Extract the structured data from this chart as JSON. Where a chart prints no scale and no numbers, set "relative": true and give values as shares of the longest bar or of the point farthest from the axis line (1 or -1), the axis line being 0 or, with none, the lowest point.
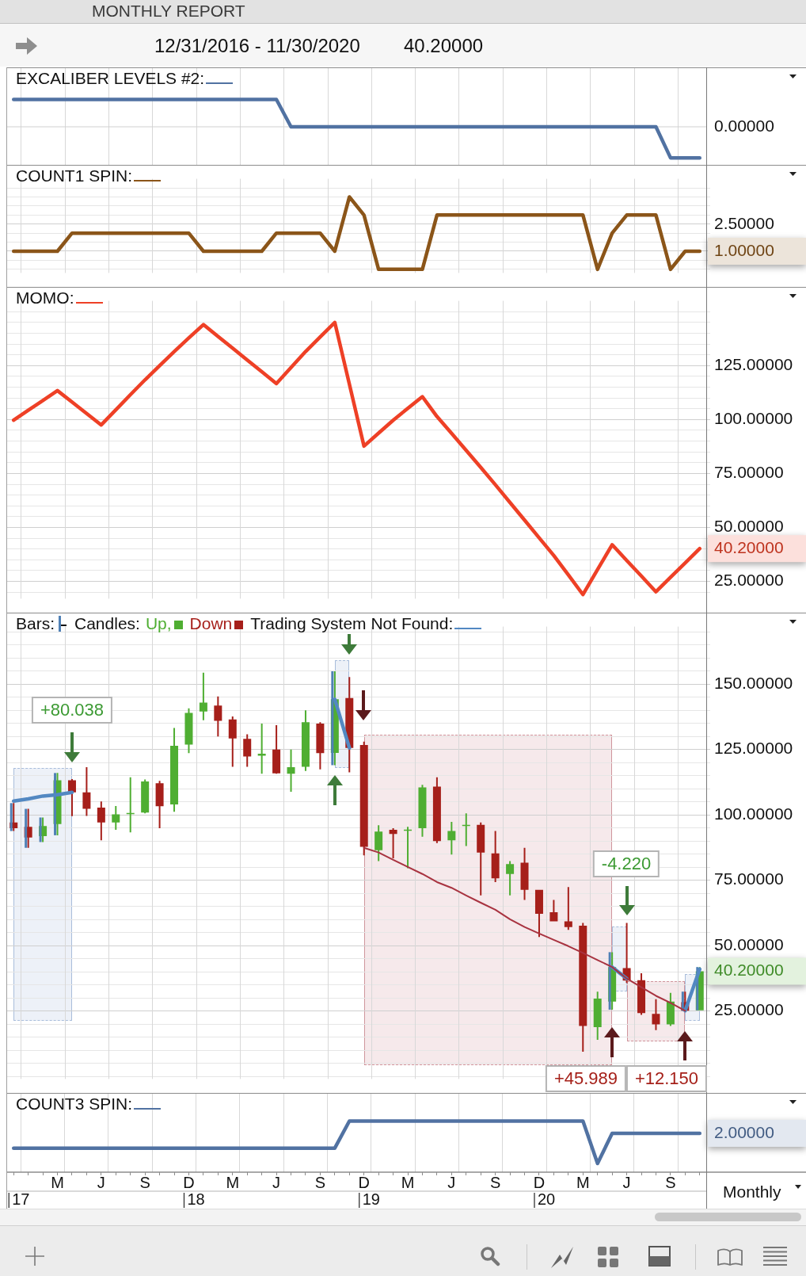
{
  "chart_data": [
    {
      "type": "line",
      "title": "MONTHLY REPORT",
      "subtitle": "12/31/2016 - 11/30/2020",
      "annotations": [
        "40.20000"
      ],
      "relative": true,
      "legend": "top left",
      "grid": "x",
      "tick_labels": false,
      "categories": [
        null,
        null,
        null,
        null,
        null,
        null,
        null,
        null,
        null,
        null,
        null,
        null,
        null,
        null,
        null,
        null,
        null,
        null,
        null,
        null,
        null,
        null,
        null,
        null,
        null,
        null,
        null,
        null,
        null,
        null,
        null,
        null,
        null,
        null,
        null,
        null,
        null,
        null,
        null,
        null,
        null,
        null,
        null,
        null,
        null,
        null,
        null,
        null
      ],
      "ref_lines": [
        {
          "axis": "y",
          "value": 0,
          "label": "0.00000"
        }
      ],
      "series": [
        {
          "name": "EXCALIBER LEVELS #2:",
          "color": "#5172a2",
          "values": [
            0.88,
            0.88,
            0.88,
            0.88,
            0.88,
            0.88,
            0.88,
            0.88,
            0.88,
            0.88,
            0.88,
            0.88,
            0.88,
            0.88,
            0.88,
            0.88,
            0.88,
            0.88,
            0.88,
            0,
            0,
            0,
            0,
            0,
            0,
            0,
            0,
            0,
            0,
            0,
            0,
            0,
            0,
            0,
            0,
            0,
            0,
            0,
            0,
            0,
            0,
            0,
            0,
            0,
            0,
            -1,
            -1,
            -1
          ]
        }
      ]
    },
    {
      "type": "line",
      "legend": "top left",
      "grid": true,
      "tick_labels": "y",
      "categories": [
        null,
        null,
        null,
        null,
        null,
        null,
        null,
        null,
        null,
        null,
        null,
        null,
        null,
        null,
        null,
        null,
        null,
        null,
        null,
        null,
        null,
        null,
        null,
        null,
        null,
        null,
        null,
        null,
        null,
        null,
        null,
        null,
        null,
        null,
        null,
        null,
        null,
        null,
        null,
        null,
        null,
        null,
        null,
        null,
        null,
        null,
        null,
        null
      ],
      "ylim": [
        -0.2,
        5
      ],
      "yticks": [
        {
          "value": 0,
          "label": null
        },
        {
          "value": 0.5,
          "label": null
        },
        {
          "value": 1,
          "label": "1.00000"
        },
        {
          "value": 1.5,
          "label": null
        },
        {
          "value": 2,
          "label": null
        },
        {
          "value": 2.5,
          "label": "2.50000"
        },
        {
          "value": 3,
          "label": null
        },
        {
          "value": 3.5,
          "label": null
        },
        {
          "value": 4,
          "label": null
        },
        {
          "value": 4.5,
          "label": null
        }
      ],
      "series": [
        {
          "name": "COUNT1 SPIN:",
          "color": "#8b5519",
          "values": [
            1,
            1,
            1,
            1,
            2,
            2,
            2,
            2,
            2,
            2,
            2,
            2,
            2,
            1,
            1,
            1,
            1,
            1,
            2,
            2,
            2,
            2,
            1,
            4,
            3,
            0,
            0,
            0,
            0,
            3,
            3,
            3,
            3,
            3,
            3,
            3,
            3,
            3,
            3,
            3,
            0,
            2,
            3,
            3,
            3,
            0,
            1,
            1
          ]
        }
      ]
    },
    {
      "type": "line",
      "legend": "top left",
      "grid": true,
      "tick_labels": "y",
      "categories": [
        null,
        null,
        null,
        null,
        null,
        null,
        null,
        null,
        null,
        null,
        null,
        null,
        null,
        null,
        null,
        null,
        null,
        null,
        null,
        null,
        null,
        null,
        null,
        null,
        null,
        null,
        null,
        null,
        null,
        null,
        null,
        null,
        null,
        null,
        null,
        null,
        null,
        null,
        null,
        null,
        null,
        null,
        null,
        null,
        null,
        null,
        null,
        null
      ],
      "ylim": [
        17,
        155
      ],
      "yticks": [
        {
          "value": 20,
          "label": null
        },
        {
          "value": 25,
          "label": "25.00000"
        },
        {
          "value": 30,
          "label": null
        },
        {
          "value": 35,
          "label": null
        },
        {
          "value": 40,
          "label": null
        },
        {
          "value": 45,
          "label": null
        },
        {
          "value": 50,
          "label": "50.00000"
        },
        {
          "value": 55,
          "label": null
        },
        {
          "value": 60,
          "label": null
        },
        {
          "value": 65,
          "label": null
        },
        {
          "value": 70,
          "label": null
        },
        {
          "value": 75,
          "label": "75.00000"
        },
        {
          "value": 80,
          "label": null
        },
        {
          "value": 85,
          "label": null
        },
        {
          "value": 90,
          "label": null
        },
        {
          "value": 95,
          "label": null
        },
        {
          "value": 100,
          "label": "100.00000"
        },
        {
          "value": 105,
          "label": null
        },
        {
          "value": 110,
          "label": null
        },
        {
          "value": 115,
          "label": null
        },
        {
          "value": 120,
          "label": null
        },
        {
          "value": 125,
          "label": "125.00000"
        },
        {
          "value": 130,
          "label": null
        },
        {
          "value": 135,
          "label": null
        },
        {
          "value": 140,
          "label": null
        },
        {
          "value": 145,
          "label": null
        },
        {
          "value": 150,
          "label": null
        }
      ],
      "series": [
        {
          "name": "MOMO:",
          "color": "#ee4026",
          "values": [
            99.7,
            104.3,
            108.8,
            113.4,
            108.1,
            102.8,
            97.5,
            104.5,
            111.5,
            118.4,
            125.0,
            131.5,
            137.8,
            144.0,
            138.5,
            133.1,
            127.6,
            122.2,
            116.7,
            124.1,
            131.5,
            138.3,
            145.0,
            116.4,
            87.7,
            93.7,
            99.7,
            105.2,
            110.6,
            101.4,
            93.6,
            85.7,
            77.8,
            69.8,
            61.6,
            53.4,
            45.2,
            37.0,
            28.0,
            18.9,
            30.5,
            42.0,
            34.7,
            27.5,
            20.2,
            26.9,
            33.5,
            40.2
          ],
          "value_labels": [
            null,
            null,
            null,
            null,
            null,
            null,
            null,
            null,
            null,
            null,
            null,
            null,
            null,
            null,
            null,
            null,
            null,
            null,
            null,
            null,
            null,
            null,
            null,
            null,
            null,
            null,
            null,
            null,
            null,
            null,
            null,
            null,
            null,
            null,
            null,
            null,
            null,
            null,
            null,
            null,
            null,
            null,
            null,
            null,
            null,
            null,
            null,
            "40.20000"
          ]
        }
      ]
    },
    {
      "type": "candlestick",
      "legend": "top left",
      "legend_title": "Candles:",
      "grid": true,
      "tick_labels": "y",
      "categories": [
        null,
        null,
        null,
        null,
        null,
        null,
        null,
        null,
        null,
        null,
        null,
        null,
        null,
        null,
        null,
        null,
        null,
        null,
        null,
        null,
        null,
        null,
        null,
        null,
        null,
        null,
        null,
        null,
        null,
        null,
        null,
        null,
        null,
        null,
        null,
        null,
        null,
        null,
        null,
        null,
        null,
        null,
        null,
        null,
        null,
        null,
        null,
        null
      ],
      "ylim": [
        -1,
        172
      ],
      "yticks": [
        {
          "value": 0,
          "label": null
        },
        {
          "value": 5,
          "label": null
        },
        {
          "value": 10,
          "label": null
        },
        {
          "value": 15,
          "label": null
        },
        {
          "value": 20,
          "label": null
        },
        {
          "value": 25,
          "label": "25.00000"
        },
        {
          "value": 30,
          "label": null
        },
        {
          "value": 35,
          "label": null
        },
        {
          "value": 40,
          "label": null
        },
        {
          "value": 45,
          "label": null
        },
        {
          "value": 50,
          "label": "50.00000"
        },
        {
          "value": 55,
          "label": null
        },
        {
          "value": 60,
          "label": null
        },
        {
          "value": 65,
          "label": null
        },
        {
          "value": 70,
          "label": null
        },
        {
          "value": 75,
          "label": "75.00000"
        },
        {
          "value": 80,
          "label": null
        },
        {
          "value": 85,
          "label": null
        },
        {
          "value": 90,
          "label": null
        },
        {
          "value": 95,
          "label": null
        },
        {
          "value": 100,
          "label": "100.00000"
        },
        {
          "value": 105,
          "label": null
        },
        {
          "value": 110,
          "label": null
        },
        {
          "value": 115,
          "label": null
        },
        {
          "value": 120,
          "label": null
        },
        {
          "value": 125,
          "label": "125.00000"
        },
        {
          "value": 130,
          "label": null
        },
        {
          "value": 135,
          "label": null
        },
        {
          "value": 140,
          "label": null
        },
        {
          "value": 145,
          "label": null
        },
        {
          "value": 150,
          "label": "150.00000"
        },
        {
          "value": 155,
          "label": null
        },
        {
          "value": 160,
          "label": null
        },
        {
          "value": 165,
          "label": null
        },
        {
          "value": 170,
          "label": null
        }
      ],
      "annotations": [
        "+80.038",
        "-4.220",
        "+45.989",
        "+12.150"
      ],
      "series": [
        {
          "type": "bar",
          "name": "Bars:",
          "color": "#4f80b6",
          "values": [
            10.7,
            14.9,
            9.4,
            23.8,
            null,
            null,
            null,
            null,
            null,
            null,
            null,
            null,
            null,
            null,
            null,
            null,
            null,
            null,
            null,
            null,
            null,
            null,
            35.9,
            null,
            null,
            null,
            null,
            null,
            null,
            null,
            null,
            null,
            null,
            null,
            null,
            null,
            null,
            null,
            null,
            null,
            null,
            22.0,
            null,
            null,
            null,
            null,
            7.4,
            16.5
          ],
          "base": [
            93.8,
            87.4,
            89.6,
            92.2,
            null,
            null,
            null,
            null,
            null,
            null,
            null,
            null,
            null,
            null,
            null,
            null,
            null,
            null,
            null,
            null,
            null,
            null,
            119.0,
            null,
            null,
            null,
            null,
            null,
            null,
            null,
            null,
            null,
            null,
            null,
            null,
            null,
            null,
            null,
            null,
            null,
            null,
            25.5,
            null,
            null,
            null,
            null,
            25.0,
            25.3
          ]
        },
        {
          "type": "candlestick",
          "name": "Up,",
          "color": "#4fae32",
          "ohlc": [
            null,
            null,
            [
              91.9,
              99.0,
              89.6,
              95.7
            ],
            [
              96.5,
              116.0,
              92.2,
              113.2
            ],
            null,
            null,
            null,
            [
              97.1,
              103.4,
              94.3,
              100.2
            ],
            [
              100.5,
              114.4,
              93.3,
              100.7
            ],
            [
              100.9,
              113.5,
              100.6,
              112.8
            ],
            null,
            [
              104.0,
              133.2,
              101.2,
              126.4
            ],
            [
              126.9,
              140.7,
              123.6,
              139.0
            ],
            [
              139.5,
              154.4,
              136.2,
              142.9
            ],
            null,
            null,
            null,
            [
              122.6,
              134.9,
              115.7,
              123.4
            ],
            null,
            [
              115.7,
              125.0,
              108.8,
              118.2
            ],
            [
              118.4,
              140.0,
              116.8,
              135.4
            ],
            null,
            [
              123.7,
              154.9,
              119.0,
              144.2
            ],
            null,
            null,
            [
              86.5,
              96.0,
              82.3,
              93.6
            ],
            null,
            [
              94.2,
              95.4,
              79.6,
              94.4
            ],
            [
              94.9,
              111.5,
              91.6,
              110.5
            ],
            null,
            [
              90.3,
              97.3,
              84.8,
              93.8
            ],
            [
              95.9,
              100.6,
              88.1,
              96.2
            ],
            null,
            null,
            [
              77.4,
              82.3,
              69.2,
              81.2
            ],
            null,
            null,
            null,
            null,
            null,
            [
              18.8,
              32.4,
              14.0,
              29.7
            ],
            [
              28.6,
              47.5,
              25.5,
              41.8
            ],
            null,
            null,
            null,
            [
              19.9,
              31.9,
              19.3,
              28.6
            ],
            null,
            [
              25.3,
              41.8,
              25.3,
              40.2
            ]
          ],
          "value_labels": [
            null,
            null,
            null,
            null,
            null,
            null,
            null,
            null,
            null,
            null,
            null,
            null,
            null,
            null,
            null,
            null,
            null,
            null,
            null,
            null,
            null,
            null,
            null,
            null,
            null,
            null,
            null,
            null,
            null,
            null,
            null,
            null,
            null,
            null,
            null,
            null,
            null,
            null,
            null,
            null,
            null,
            null,
            null,
            null,
            null,
            null,
            null,
            "40.20000"
          ]
        },
        {
          "type": "candlestick",
          "name": "Down",
          "color": "#a61f1a",
          "ohlc": [
            [
              97.1,
              104.5,
              93.8,
              94.9
            ],
            [
              95.4,
              102.3,
              87.4,
              91.3
            ],
            null,
            null,
            [
              113.2,
              113.7,
              99.5,
              108.6
            ],
            [
              108.6,
              118.2,
              99.6,
              102.3
            ],
            [
              102.8,
              105.1,
              90.3,
              97.1
            ],
            null,
            null,
            null,
            [
              112.1,
              113.0,
              94.9,
              103.3
            ],
            null,
            null,
            null,
            [
              141.8,
              145.3,
              130.0,
              136.0
            ],
            [
              136.5,
              137.6,
              118.4,
              129.2
            ],
            [
              129.1,
              130.8,
              118.4,
              122.3
            ],
            null,
            [
              125.0,
              134.3,
              115.7,
              115.9
            ],
            null,
            null,
            [
              134.9,
              135.4,
              117.4,
              123.6
            ],
            null,
            [
              144.7,
              152.7,
              116.3,
              125.6
            ],
            [
              126.7,
              128.0,
              84.5,
              87.8
            ],
            null,
            [
              94.3,
              94.9,
              83.4,
              92.7
            ],
            null,
            null,
            [
              110.8,
              114.4,
              89.2,
              90.0
            ],
            null,
            null,
            [
              96.2,
              97.1,
              69.2,
              85.6
            ],
            [
              85.3,
              93.8,
              74.3,
              75.7
            ],
            null,
            [
              81.7,
              87.4,
              67.5,
              71.3
            ],
            [
              71.3,
              71.3,
              53.3,
              62.2
            ],
            [
              62.8,
              67.5,
              59.3,
              59.3
            ],
            [
              59.3,
              72.4,
              56.0,
              57.1
            ],
            [
              57.6,
              58.7,
              9.4,
              19.3
            ],
            null,
            null,
            [
              41.4,
              58.7,
              35.7,
              36.6
            ],
            [
              36.8,
              39.4,
              23.5,
              24.2
            ],
            [
              23.9,
              29.5,
              17.7,
              19.9
            ],
            null,
            [
              28.4,
              32.4,
              25.0,
              25.1
            ],
            null
          ]
        },
        {
          "type": "line",
          "name": "Trading System Not Found:",
          "color": "#5288c2",
          "values": [
            105.3,
            106.1,
            107.2,
            107.7,
            108.6,
            null,
            null,
            null,
            null,
            null,
            null,
            null,
            null,
            null,
            null,
            null,
            null,
            null,
            null,
            null,
            null,
            null,
            144.2,
            125.6,
            null,
            null,
            null,
            null,
            null,
            null,
            null,
            null,
            null,
            null,
            null,
            null,
            null,
            null,
            null,
            null,
            null,
            41.8,
            37.4,
            null,
            null,
            null,
            25.1,
            41.0
          ]
        },
        {
          "type": "line",
          "color": "#a83340",
          "values": [
            null,
            null,
            null,
            null,
            null,
            null,
            null,
            null,
            null,
            null,
            null,
            null,
            null,
            null,
            null,
            null,
            null,
            null,
            null,
            null,
            null,
            null,
            null,
            null,
            87.4,
            85.6,
            82.8,
            80.1,
            77.4,
            74.3,
            72.1,
            69.2,
            66.4,
            63.7,
            60.1,
            57.1,
            54.6,
            52.2,
            49.8,
            47.2,
            44.5,
            41.8,
            37.4,
            34.1,
            30.8,
            28.1,
            25.1,
            null
          ]
        }
      ]
    },
    {
      "type": "line",
      "relative": true,
      "legend": "top left",
      "grid": "x",
      "tick_labels": "x",
      "xlabel": "Monthly",
      "annotations": [
        "2.00000"
      ],
      "categories": [
        null,
        null,
        null,
        "M",
        null,
        null,
        "J",
        null,
        null,
        "S",
        null,
        null,
        "D",
        null,
        null,
        "M",
        null,
        null,
        "J",
        null,
        null,
        "S",
        null,
        null,
        "D",
        null,
        null,
        "M",
        null,
        null,
        "J",
        null,
        null,
        "S",
        null,
        null,
        "D",
        null,
        null,
        "M",
        null,
        null,
        "J",
        null,
        null,
        "S",
        null,
        null
      ],
      "x2lim": [
        16.917,
        20.917
      ],
      "x2ticks": [
        17,
        {
          "value": 17.25,
          "label": null
        },
        {
          "value": 17.5,
          "label": null
        },
        {
          "value": 17.75,
          "label": null
        },
        18,
        {
          "value": 18.25,
          "label": null
        },
        {
          "value": 18.5,
          "label": null
        },
        {
          "value": 18.75,
          "label": null
        },
        19,
        {
          "value": 19.25,
          "label": null
        },
        {
          "value": 19.5,
          "label": null
        },
        {
          "value": 19.75,
          "label": null
        },
        20,
        {
          "value": 20.25,
          "label": null
        },
        {
          "value": 20.5,
          "label": null
        },
        {
          "value": 20.75,
          "label": null
        }
      ],
      "series": [
        {
          "name": "COUNT3 SPIN:",
          "color": "#5172a2",
          "values": [
            0.47,
            0.47,
            0.47,
            0.47,
            0.47,
            0.47,
            0.47,
            0.47,
            0.47,
            0.47,
            0.47,
            0.47,
            0.47,
            0.47,
            0.47,
            0.47,
            0.47,
            0.47,
            0.47,
            0.47,
            0.47,
            0.47,
            0.47,
            1,
            1,
            1,
            1,
            1,
            1,
            1,
            1,
            1,
            1,
            1,
            1,
            1,
            1,
            1,
            1,
            1,
            0.17,
            0.76,
            0.76,
            0.76,
            0.76,
            0.76,
            0.76,
            0.76
          ]
        }
      ]
    }
  ]
}
